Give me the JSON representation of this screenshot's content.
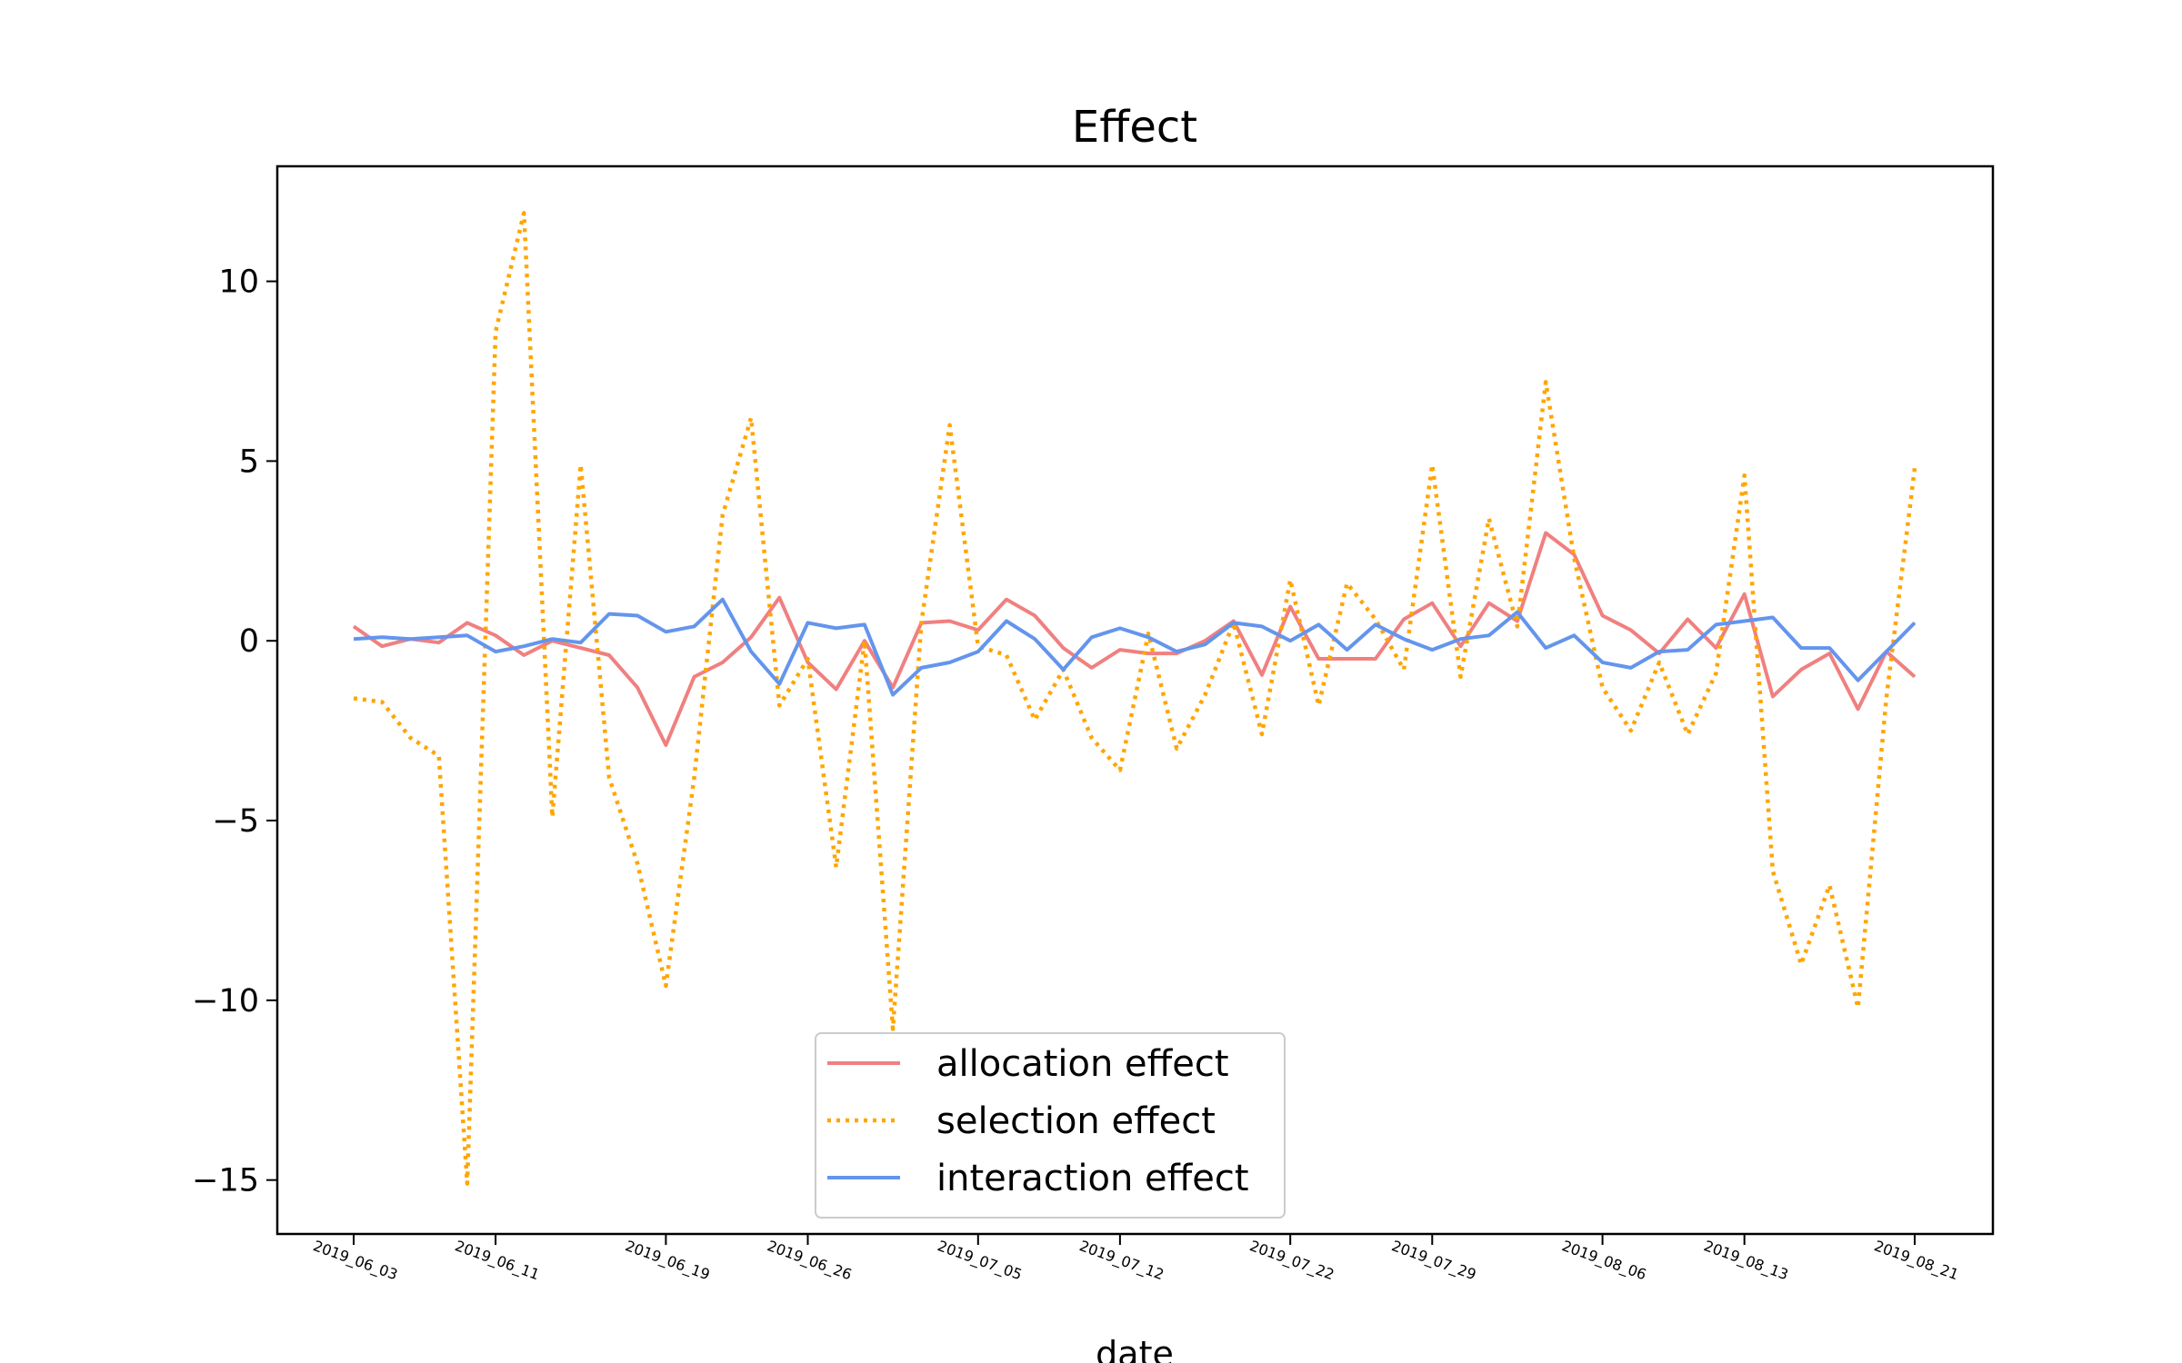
{
  "chart_data": {
    "type": "line",
    "title": "Effect",
    "xlabel": "date",
    "ylabel": "",
    "ylim": [
      -16.5,
      13.2
    ],
    "yticks": [
      10,
      5,
      0,
      -5,
      -10,
      -15
    ],
    "ytick_labels": [
      "10",
      "5",
      "0",
      "−5",
      "−10",
      "−15"
    ],
    "x_tick_labels": [
      {
        "label": "2019_06_03",
        "index": 0
      },
      {
        "label": "2019_06_11",
        "index": 5
      },
      {
        "label": "2019_06_19",
        "index": 11
      },
      {
        "label": "2019_06_26",
        "index": 16
      },
      {
        "label": "2019_07_05",
        "index": 22
      },
      {
        "label": "2019_07_12",
        "index": 27
      },
      {
        "label": "2019_07_22",
        "index": 33
      },
      {
        "label": "2019_07_29",
        "index": 38
      },
      {
        "label": "2019_08_06",
        "index": 44
      },
      {
        "label": "2019_08_13",
        "index": 49
      },
      {
        "label": "2019_08_21",
        "index": 55
      }
    ],
    "grid": false,
    "legend_position": "lower-center",
    "series": [
      {
        "name": "allocation effect",
        "color": "#f08080",
        "style": "solid",
        "values": [
          0.4,
          -0.15,
          0.05,
          -0.05,
          0.5,
          0.15,
          -0.4,
          0.0,
          -0.2,
          -0.4,
          -1.3,
          -2.9,
          -1.0,
          -0.6,
          0.1,
          1.2,
          -0.6,
          -1.35,
          0.0,
          -1.3,
          0.5,
          0.55,
          0.3,
          1.15,
          0.7,
          -0.2,
          -0.75,
          -0.25,
          -0.35,
          -0.35,
          0.0,
          0.55,
          -0.95,
          0.95,
          -0.5,
          -0.5,
          -0.5,
          0.6,
          1.05,
          -0.15,
          1.05,
          0.55,
          3.0,
          2.4,
          0.7,
          0.3,
          -0.35,
          0.6,
          -0.2,
          1.3,
          -1.55,
          -0.8,
          -0.35,
          -1.9,
          -0.3,
          -1.0
        ]
      },
      {
        "name": "selection effect",
        "color": "#ffa500",
        "style": "dotted",
        "values": [
          -1.6,
          -1.7,
          -2.7,
          -3.2,
          -15.1,
          8.6,
          11.9,
          -4.9,
          4.9,
          -3.8,
          -6.2,
          -9.6,
          -3.8,
          3.5,
          6.2,
          -1.8,
          -0.5,
          -6.3,
          0.0,
          -10.8,
          0.5,
          6.0,
          -0.15,
          -0.4,
          -2.2,
          -0.8,
          -2.7,
          -3.6,
          0.2,
          -3.0,
          -1.5,
          0.5,
          -2.6,
          1.7,
          -1.8,
          1.6,
          0.6,
          -0.8,
          4.9,
          -1.0,
          3.4,
          0.4,
          7.2,
          2.3,
          -1.3,
          -2.5,
          -0.6,
          -2.6,
          -0.9,
          4.6,
          -6.4,
          -9.0,
          -6.8,
          -10.2,
          -1.6,
          4.8
        ]
      },
      {
        "name": "interaction effect",
        "color": "#6495ed",
        "style": "solid",
        "values": [
          0.05,
          0.1,
          0.05,
          0.1,
          0.15,
          -0.3,
          -0.15,
          0.05,
          -0.05,
          0.75,
          0.7,
          0.25,
          0.4,
          1.15,
          -0.3,
          -1.2,
          0.5,
          0.35,
          0.45,
          -1.5,
          -0.75,
          -0.6,
          -0.3,
          0.55,
          0.05,
          -0.8,
          0.1,
          0.35,
          0.1,
          -0.3,
          -0.1,
          0.5,
          0.4,
          0.0,
          0.45,
          -0.25,
          0.45,
          0.05,
          -0.25,
          0.05,
          0.15,
          0.8,
          -0.2,
          0.15,
          -0.6,
          -0.75,
          -0.3,
          -0.25,
          0.45,
          0.55,
          0.65,
          -0.2,
          -0.2,
          -1.1,
          -0.3,
          0.5
        ]
      }
    ]
  }
}
